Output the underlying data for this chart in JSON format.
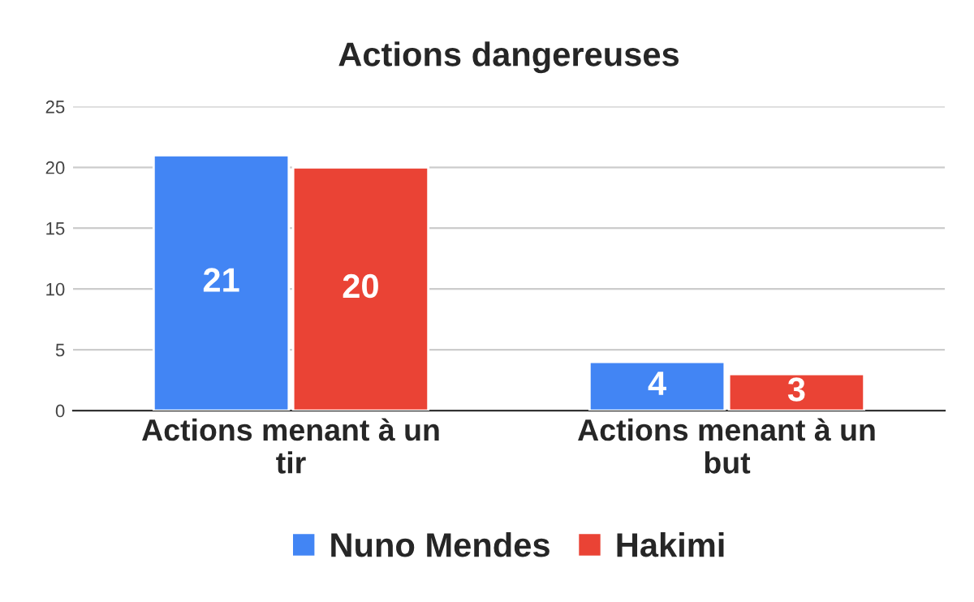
{
  "chart_data": {
    "type": "bar",
    "title": "Actions dangereuses",
    "categories": [
      "Actions menant à un tir",
      "Actions menant à un but"
    ],
    "series": [
      {
        "name": "Nuno Mendes",
        "color": "#4285f4",
        "values": [
          21,
          4
        ]
      },
      {
        "name": "Hakimi",
        "color": "#ea4335",
        "values": [
          20,
          3
        ]
      }
    ],
    "ylim": [
      0,
      25
    ],
    "yticks": [
      0,
      5,
      10,
      15,
      20,
      25
    ],
    "grid": "y",
    "legend": "bottom",
    "data_labels": true
  }
}
